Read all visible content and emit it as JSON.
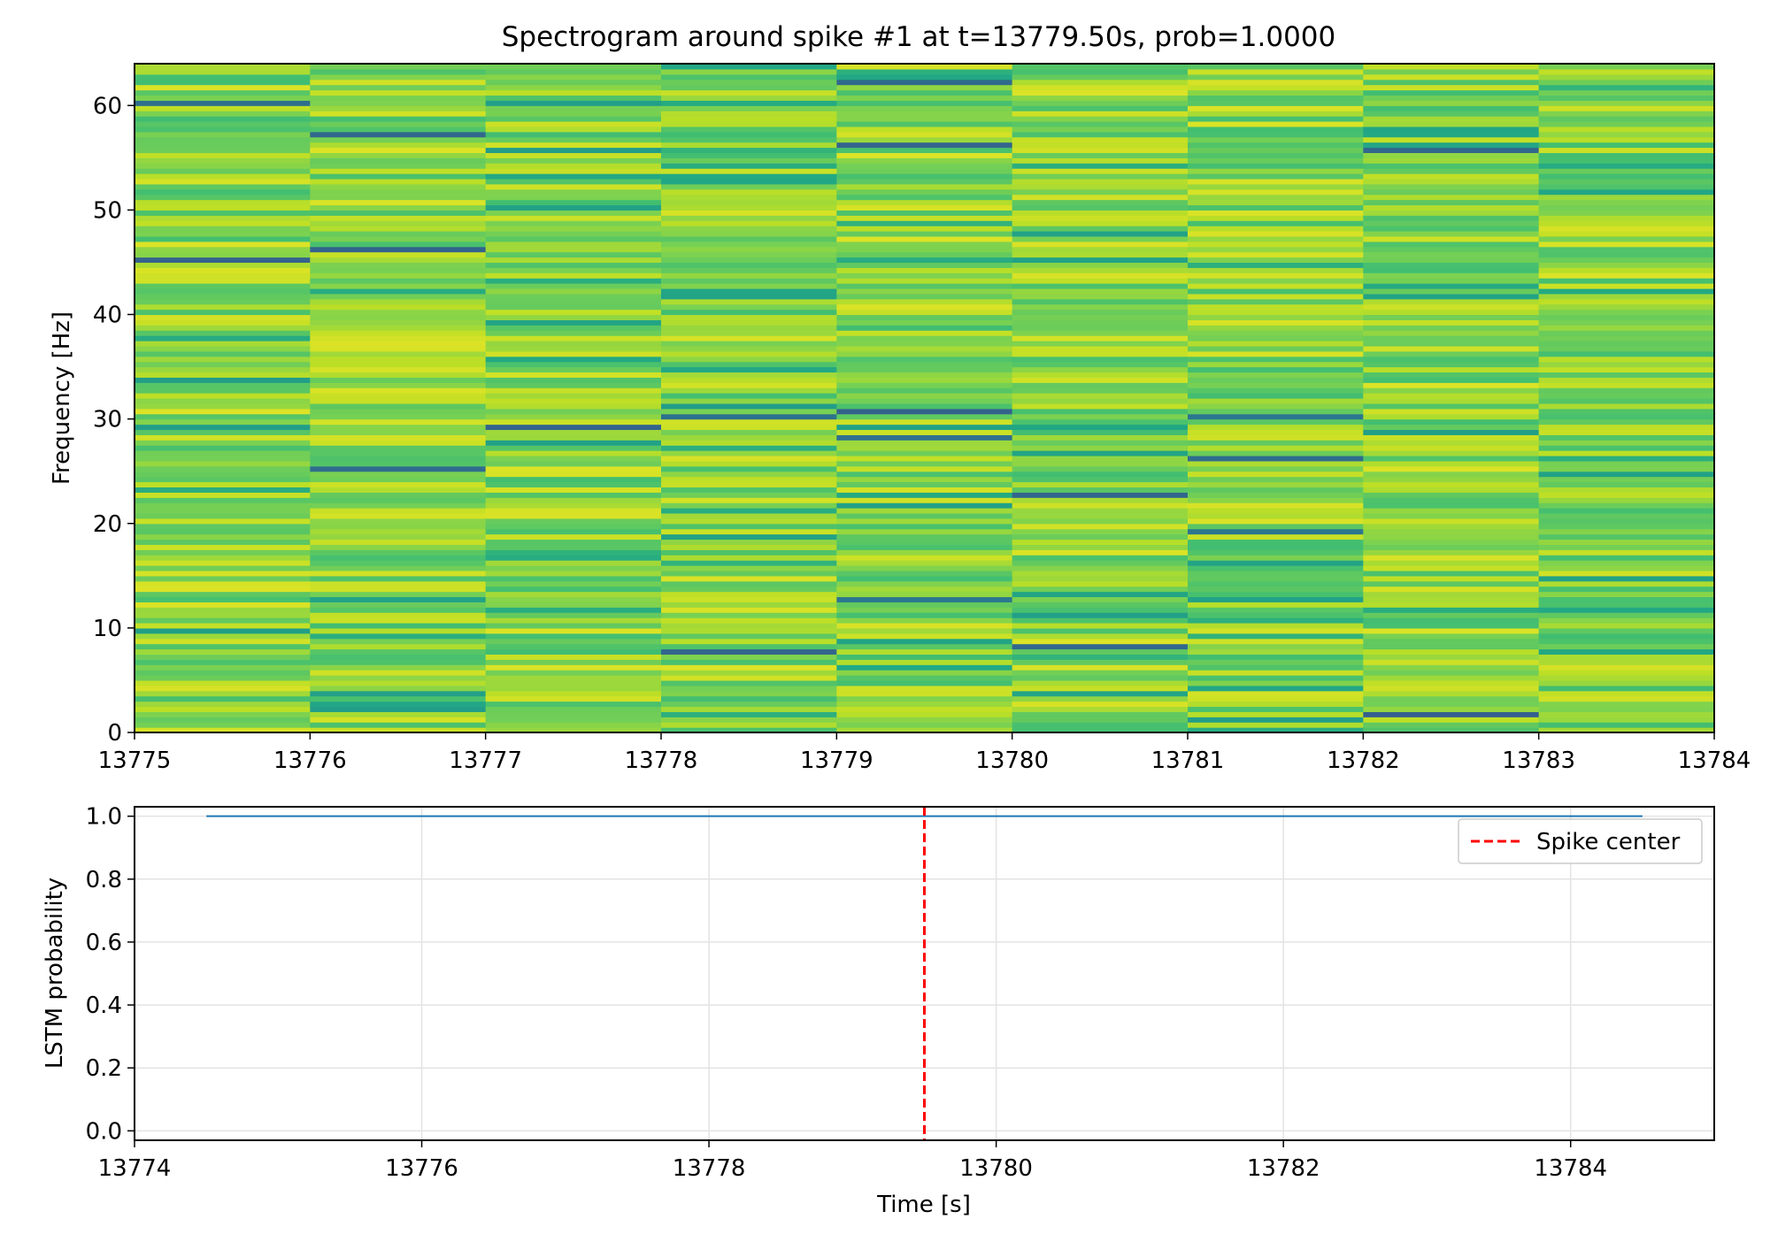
{
  "chart_data": [
    {
      "type": "heatmap",
      "title": "Spectrogram around spike #1 at t=13779.50s, prob=1.0000",
      "xlabel": "",
      "ylabel": "Frequency [Hz]",
      "xlim": [
        13775,
        13784
      ],
      "ylim": [
        0,
        64
      ],
      "x_ticks": [
        13775,
        13776,
        13777,
        13778,
        13779,
        13780,
        13781,
        13782,
        13783,
        13784
      ],
      "y_ticks": [
        0,
        10,
        20,
        30,
        40,
        50,
        60
      ],
      "time_bins": [
        13775,
        13776,
        13777,
        13778,
        13779,
        13780,
        13781,
        13782,
        13783
      ],
      "bin_width": 1,
      "freq_resolution": 0.5,
      "colormap": "viridis",
      "color_range_observed": [
        0.55,
        0.95
      ],
      "grid": false
    },
    {
      "type": "line",
      "title": "",
      "xlabel": "Time [s]",
      "ylabel": "LSTM probability",
      "xlim": [
        13774,
        13785
      ],
      "ylim": [
        -0.03,
        1.03
      ],
      "x_ticks": [
        13774,
        13776,
        13778,
        13780,
        13782,
        13784
      ],
      "y_ticks": [
        0.0,
        0.2,
        0.4,
        0.6,
        0.8,
        1.0
      ],
      "grid": true,
      "legend_position": "top-right",
      "series": [
        {
          "name": "",
          "x": [
            13774.5,
            13784.5
          ],
          "y": [
            1.0,
            1.0
          ],
          "color": "#1f77b4"
        }
      ],
      "vlines": [
        {
          "name": "Spike center",
          "x": 13779.5,
          "color": "#ff0000",
          "style": "dashed"
        }
      ]
    }
  ]
}
